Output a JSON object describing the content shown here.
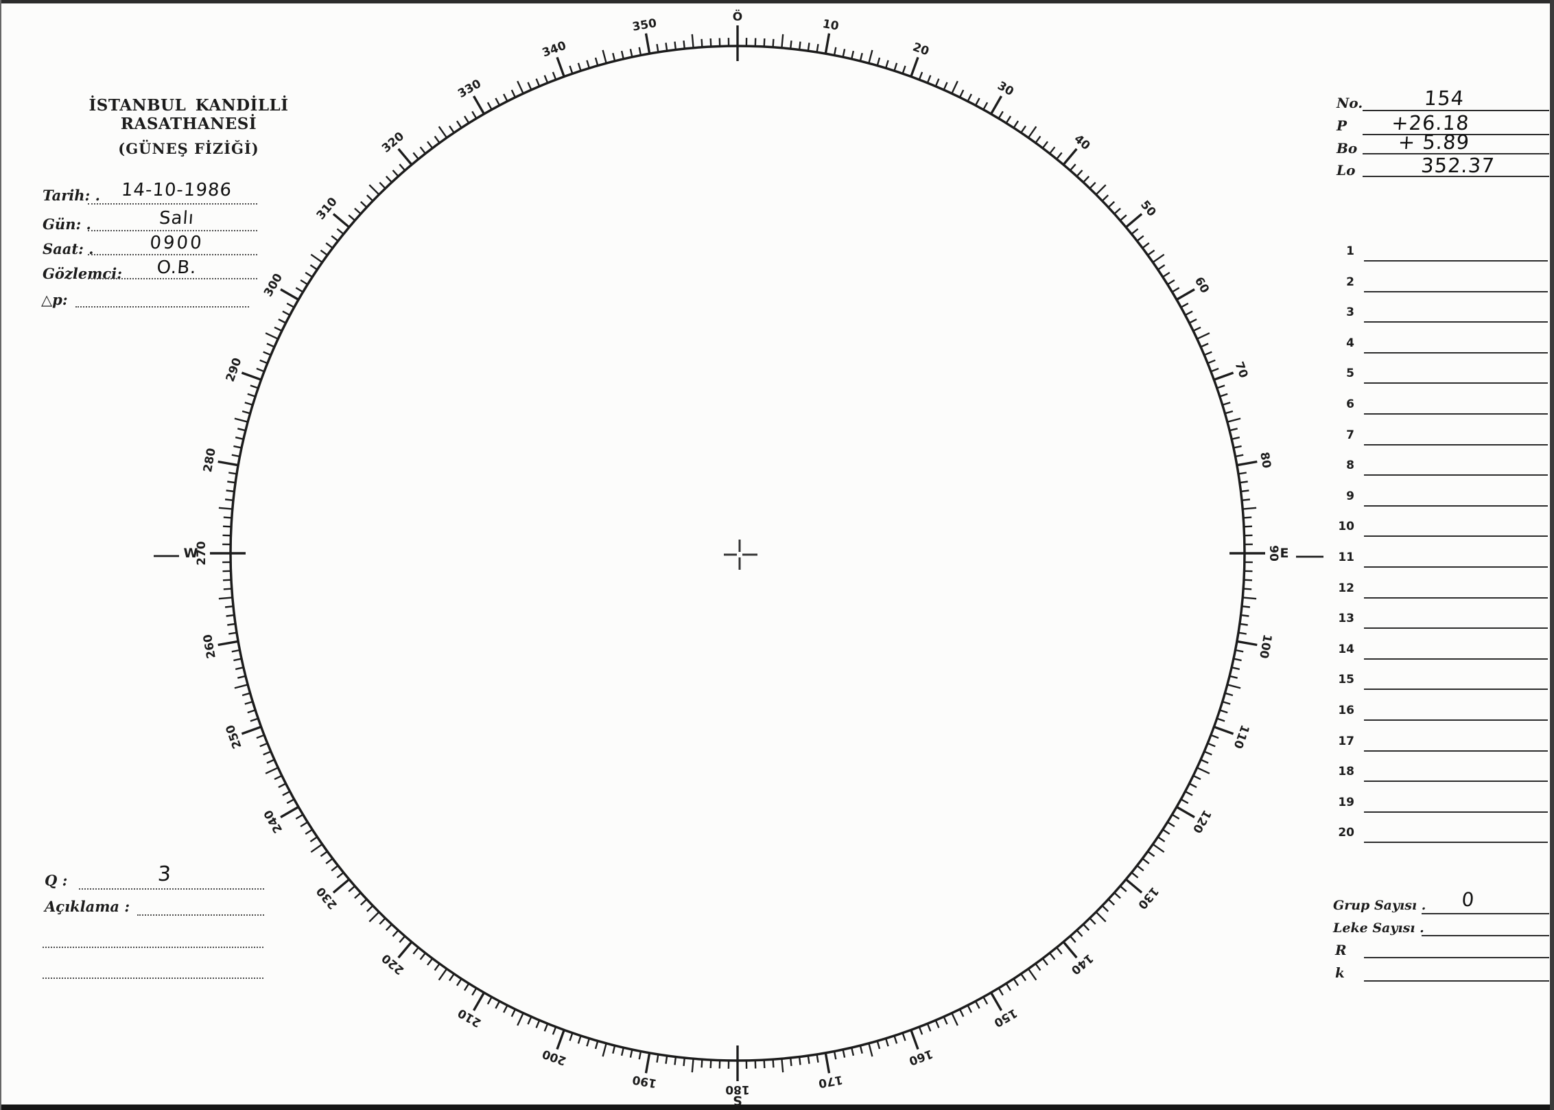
{
  "header": {
    "line1": "İSTANBUL KANDİLLİ RASATHANESİ",
    "line2": "(GÜNEŞ FİZİĞİ)"
  },
  "observation": {
    "fields": [
      {
        "label": "Tarih: .",
        "value": "14-10-1986"
      },
      {
        "label": "Gün: .",
        "value": "Salı"
      },
      {
        "label": "Saat: .",
        "value": "0900"
      },
      {
        "label": "Gözlemci:",
        "value": "O.B."
      },
      {
        "label": "△p:",
        "value": ""
      }
    ]
  },
  "ephemeris": {
    "rows": [
      {
        "label": "No.",
        "value": "154"
      },
      {
        "label": "P",
        "value": "+26.18"
      },
      {
        "label": "Bo",
        "value": "+ 5.89"
      },
      {
        "label": "Lo",
        "value": "352.37"
      }
    ]
  },
  "spot_list": {
    "row_numbers": [
      "1",
      "2",
      "3",
      "4",
      "5",
      "6",
      "7",
      "8",
      "9",
      "10",
      "11",
      "12",
      "13",
      "14",
      "15",
      "16",
      "17",
      "18",
      "19",
      "20"
    ]
  },
  "summary": {
    "rows": [
      {
        "label": "Grup Sayısı .",
        "value": "0"
      },
      {
        "label": "Leke Sayısı .",
        "value": ""
      },
      {
        "label": "R",
        "value": ""
      },
      {
        "label": "k",
        "value": ""
      }
    ]
  },
  "quality": {
    "label": "Q :",
    "value": "3"
  },
  "remarks": {
    "label": "Açıklama :",
    "value": ""
  },
  "dial": {
    "type": "circular-degree-scale",
    "unit": "degrees",
    "min": 0,
    "max": 360,
    "tick_interval_minor_deg": 1,
    "tick_interval_medium_deg": 5,
    "tick_interval_major_deg": 10,
    "ink_color": "#1c1c1c",
    "center_marker": "crosshair",
    "degree_labels": [
      {
        "angle": 0,
        "text": "Ö"
      },
      {
        "angle": 10,
        "text": "10"
      },
      {
        "angle": 20,
        "text": "20"
      },
      {
        "angle": 30,
        "text": "30"
      },
      {
        "angle": 40,
        "text": "40"
      },
      {
        "angle": 50,
        "text": "50"
      },
      {
        "angle": 60,
        "text": "60"
      },
      {
        "angle": 70,
        "text": "70"
      },
      {
        "angle": 80,
        "text": "80"
      },
      {
        "angle": 90,
        "text": "90"
      },
      {
        "angle": 100,
        "text": "100"
      },
      {
        "angle": 110,
        "text": "110"
      },
      {
        "angle": 120,
        "text": "120"
      },
      {
        "angle": 130,
        "text": "130"
      },
      {
        "angle": 140,
        "text": "140"
      },
      {
        "angle": 150,
        "text": "150"
      },
      {
        "angle": 160,
        "text": "160"
      },
      {
        "angle": 170,
        "text": "170"
      },
      {
        "angle": 180,
        "text": "180"
      },
      {
        "angle": 190,
        "text": "190"
      },
      {
        "angle": 200,
        "text": "200"
      },
      {
        "angle": 210,
        "text": "210"
      },
      {
        "angle": 220,
        "text": "220"
      },
      {
        "angle": 230,
        "text": "230"
      },
      {
        "angle": 240,
        "text": "240"
      },
      {
        "angle": 250,
        "text": "250"
      },
      {
        "angle": 260,
        "text": "260"
      },
      {
        "angle": 270,
        "text": "270"
      },
      {
        "angle": 280,
        "text": "280"
      },
      {
        "angle": 290,
        "text": "290"
      },
      {
        "angle": 300,
        "text": "300"
      },
      {
        "angle": 310,
        "text": "310"
      },
      {
        "angle": 320,
        "text": "320"
      },
      {
        "angle": 330,
        "text": "330"
      },
      {
        "angle": 340,
        "text": "340"
      },
      {
        "angle": 350,
        "text": "350"
      }
    ],
    "cardinal_labels": [
      {
        "angle": 90,
        "text": "E"
      },
      {
        "angle": 180,
        "text": "S"
      },
      {
        "angle": 270,
        "text": "W"
      }
    ]
  }
}
